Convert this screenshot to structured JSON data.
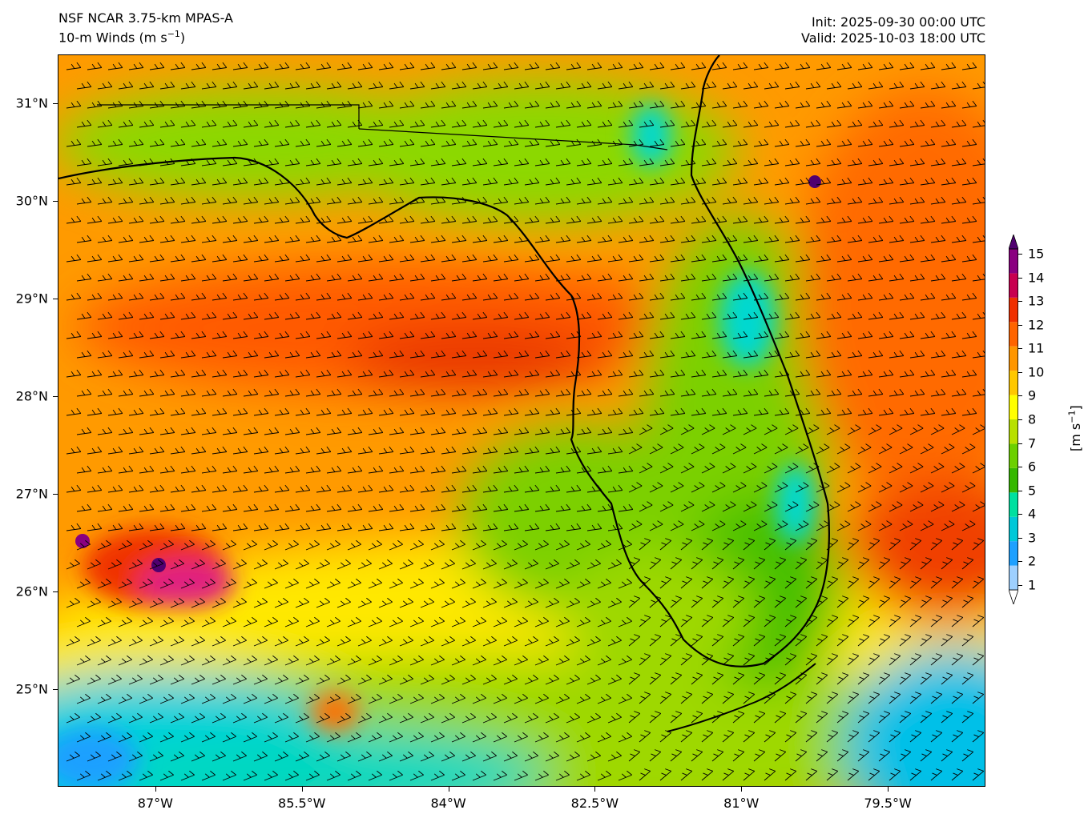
{
  "header": {
    "model": "NSF NCAR 3.75-km MPAS-A",
    "field_label": "10-m Winds (m s",
    "field_exp": "−1",
    "field_close": ")",
    "init": "Init: 2025-09-30 00:00 UTC",
    "valid": "Valid: 2025-10-03 18:00 UTC"
  },
  "map": {
    "lon_range": [
      -88.0,
      -78.5
    ],
    "lat_range": [
      24.0,
      31.5
    ],
    "lat_ticks": [
      {
        "label": "31°N",
        "value": 31
      },
      {
        "label": "30°N",
        "value": 30
      },
      {
        "label": "29°N",
        "value": 29
      },
      {
        "label": "28°N",
        "value": 28
      },
      {
        "label": "27°N",
        "value": 27
      },
      {
        "label": "26°N",
        "value": 26
      },
      {
        "label": "25°N",
        "value": 25
      }
    ],
    "lon_ticks": [
      {
        "label": "87°W",
        "value": -87
      },
      {
        "label": "85.5°W",
        "value": -85.5
      },
      {
        "label": "84°W",
        "value": -84
      },
      {
        "label": "82.5°W",
        "value": -82.5
      },
      {
        "label": "81°W",
        "value": -81
      },
      {
        "label": "79.5°W",
        "value": -79.5
      }
    ]
  },
  "colorbar": {
    "title_main": "[m s",
    "title_exp": "−1",
    "title_close": "]",
    "labels": [
      "15",
      "14",
      "13",
      "12",
      "11",
      "10",
      "9",
      "8",
      "7",
      "6",
      "5",
      "4",
      "3",
      "2",
      "1"
    ],
    "colors": [
      "#ffffff",
      "#9ed0ff",
      "#1ea0ff",
      "#00c8d8",
      "#00e0a0",
      "#36b800",
      "#6cd000",
      "#b8e000",
      "#ffff00",
      "#ffc800",
      "#ff9600",
      "#ff6400",
      "#f03000",
      "#c80050",
      "#8a0080",
      "#500070"
    ]
  }
}
